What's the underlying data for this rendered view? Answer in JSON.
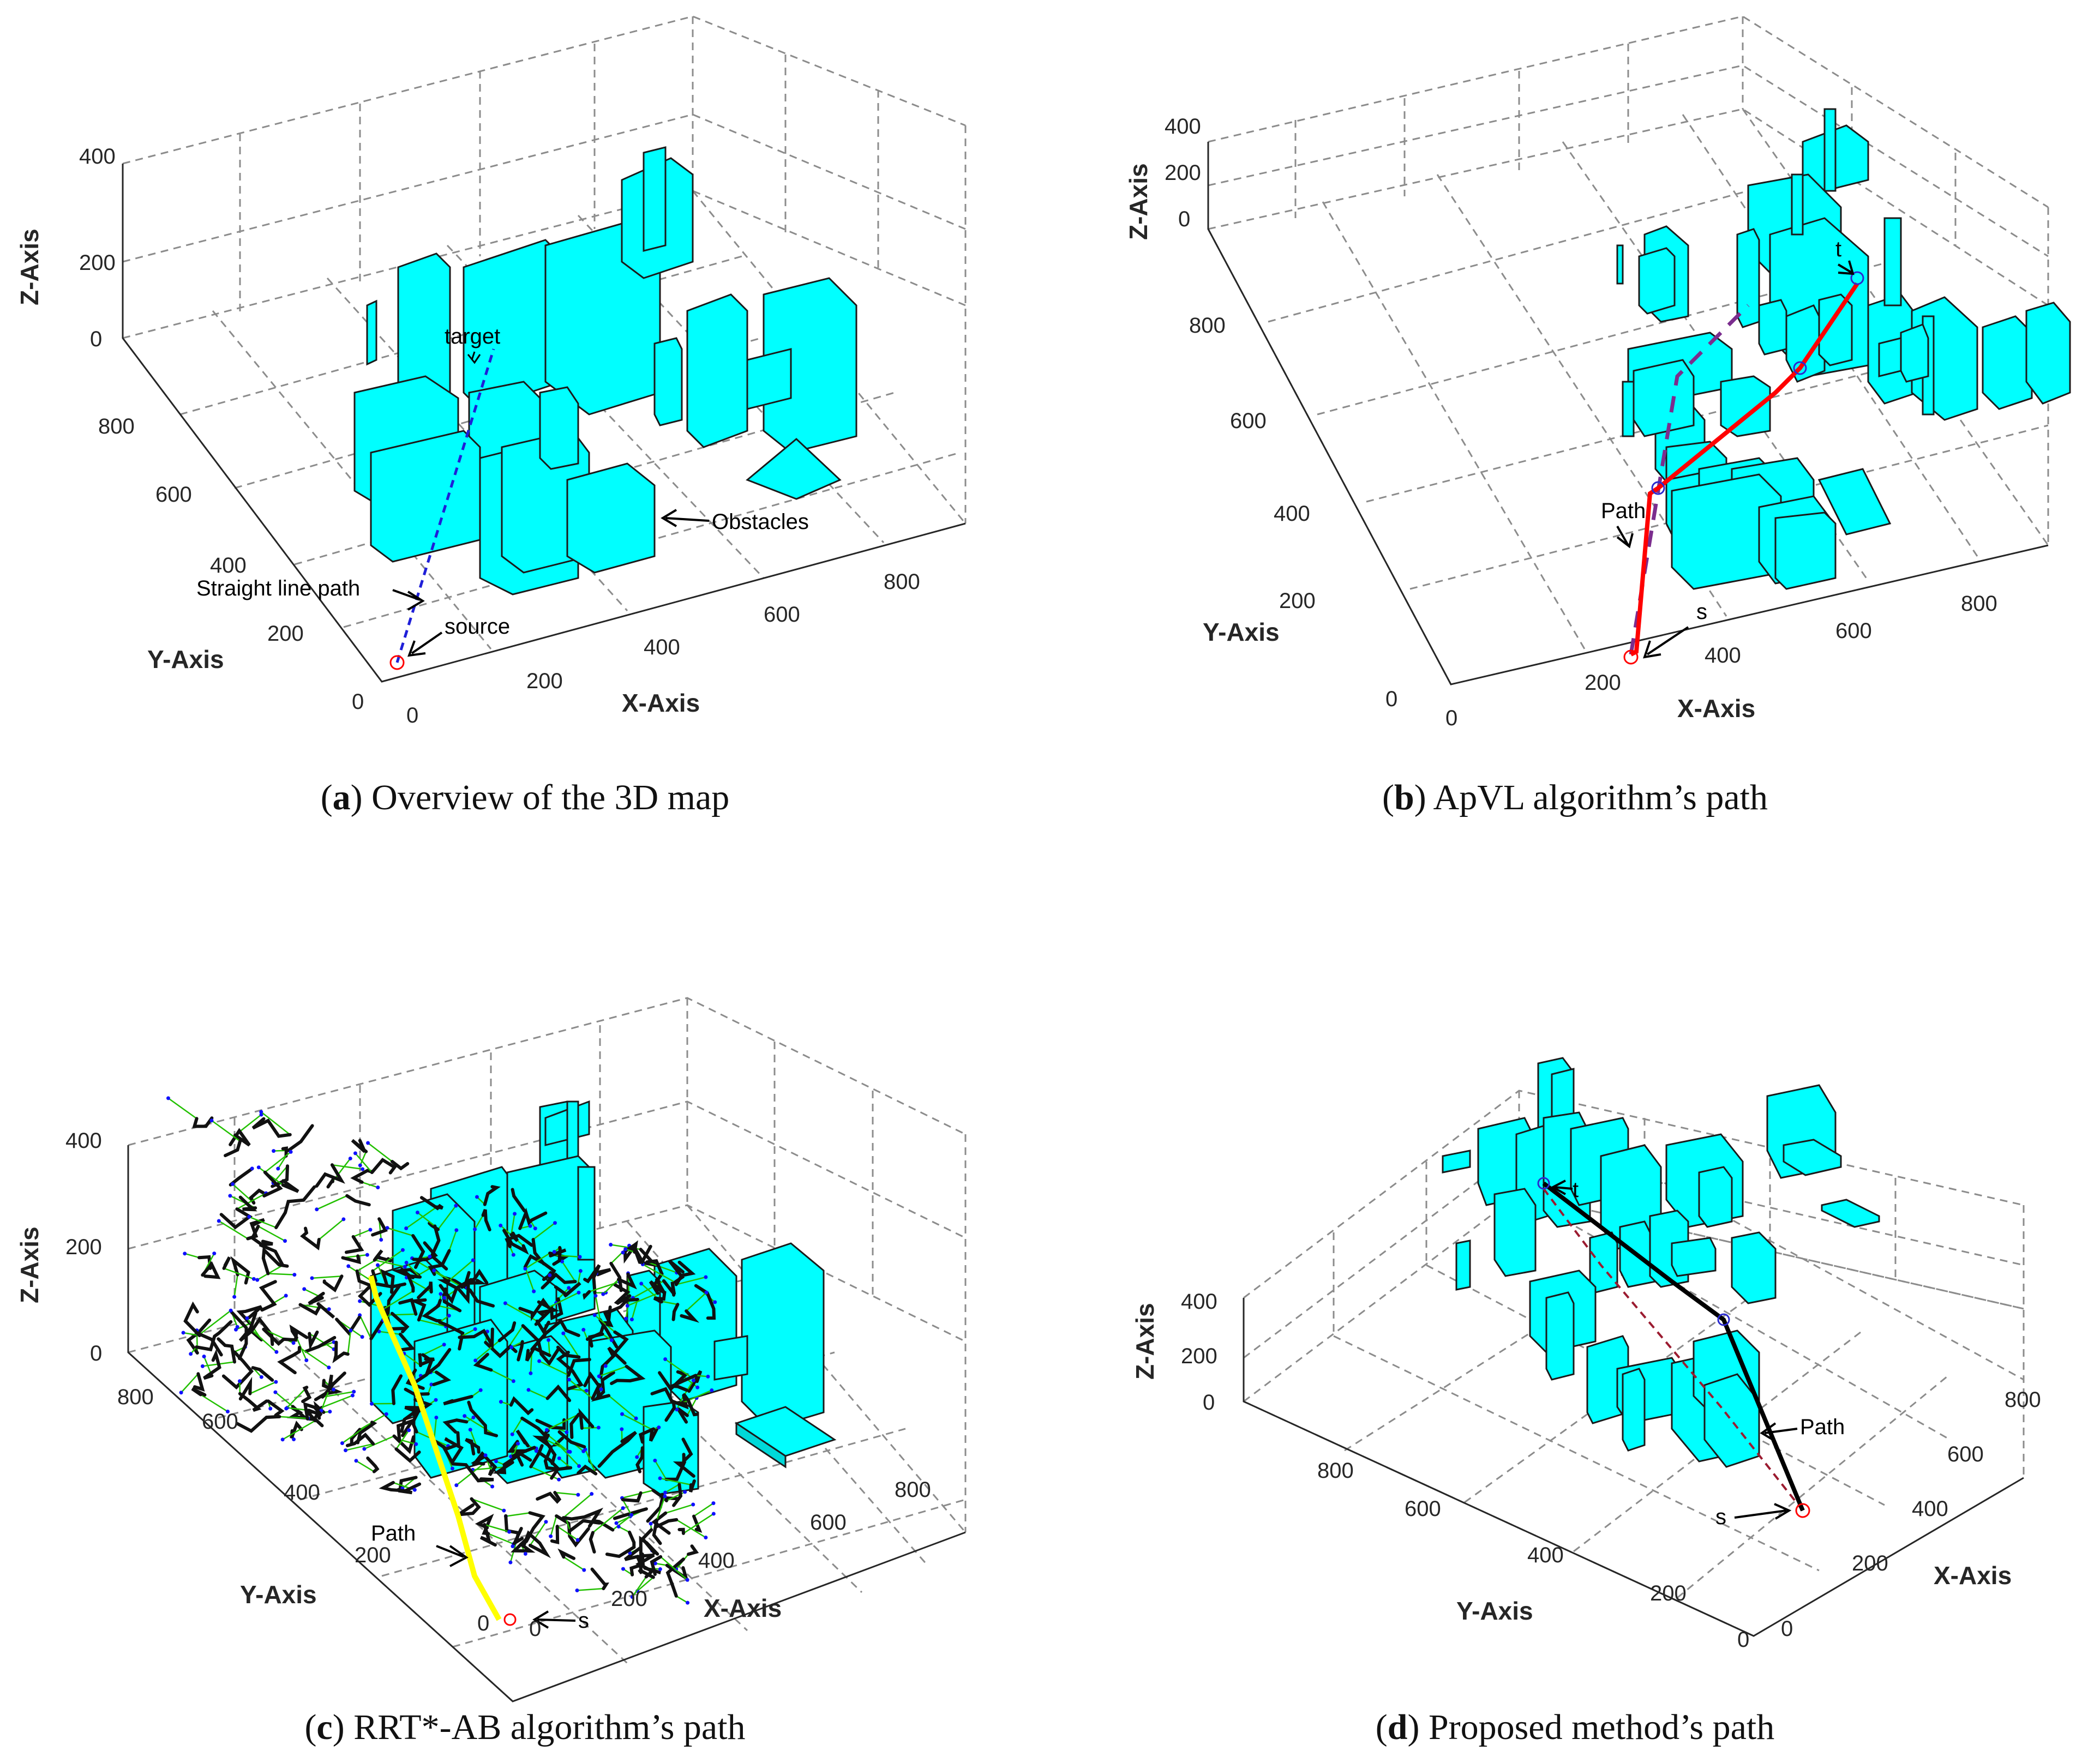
{
  "colors": {
    "obstacle": "#00ffff",
    "obstacle_edge": "#1a1a1a",
    "grid": "#8c8c8c",
    "straight_line": "#1f1fd8",
    "apvl_path": "#ff0000",
    "dashed_path": "#7b2d8e",
    "tree_branch": "#111111",
    "tree_edge": "#22c000",
    "sample_node": "#1010ff",
    "rrt_path": "#ffff00",
    "proposed_path": "#000000",
    "proposed_dashed": "#9b1b30",
    "marker": "#ff0000",
    "waypoint": "#2a2ad0"
  },
  "chart_data": [
    {
      "id": "a",
      "type": "3d-scene",
      "caption_label": "a",
      "caption_text": "Overview of the 3D map",
      "xlabel": "X-Axis",
      "ylabel": "Y-Axis",
      "zlabel": "Z-Axis",
      "xticks": [
        "0",
        "200",
        "400",
        "600",
        "800"
      ],
      "yticks": [
        "0",
        "200",
        "400",
        "600",
        "800"
      ],
      "zticks": [
        "0",
        "200",
        "400"
      ],
      "xlim": [
        0,
        900
      ],
      "ylim": [
        0,
        900
      ],
      "zlim": [
        0,
        400
      ],
      "grid": true,
      "annotations": [
        "target",
        "Obstacles",
        "Straight line path",
        "source"
      ],
      "source": [
        0,
        0,
        0
      ],
      "target": [
        350,
        850,
        0
      ]
    },
    {
      "id": "b",
      "type": "3d-scene",
      "caption_label": "b",
      "caption_text": "ApVL algorithm’s path",
      "xlabel": "X-Axis",
      "ylabel": "Y-Axis",
      "zlabel": "Z-Axis",
      "xticks": [
        "0",
        "200",
        "400",
        "600",
        "800"
      ],
      "yticks": [
        "0",
        "200",
        "400",
        "600",
        "800"
      ],
      "zticks": [
        "0",
        "200",
        "400"
      ],
      "xlim": [
        0,
        900
      ],
      "ylim": [
        0,
        900
      ],
      "zlim": [
        0,
        400
      ],
      "grid": true,
      "annotations": [
        "t",
        "Path",
        "s"
      ],
      "source": [
        0,
        0,
        0
      ],
      "target": [
        350,
        850,
        0
      ]
    },
    {
      "id": "c",
      "type": "3d-scene",
      "caption_label": "c",
      "caption_text": "RRT*-AB algorithm’s path",
      "xlabel": "X-Axis",
      "ylabel": "Y-Axis",
      "zlabel": "Z-Axis",
      "xticks": [
        "0",
        "200",
        "400",
        "600",
        "800"
      ],
      "yticks": [
        "0",
        "200",
        "400",
        "600",
        "800"
      ],
      "zticks": [
        "0",
        "200",
        "400"
      ],
      "xlim": [
        0,
        900
      ],
      "ylim": [
        0,
        900
      ],
      "zlim": [
        0,
        400
      ],
      "grid": true,
      "annotations": [
        "Path",
        "s"
      ],
      "source": [
        0,
        0,
        0
      ],
      "target": [
        350,
        850,
        0
      ]
    },
    {
      "id": "d",
      "type": "3d-scene",
      "caption_label": "d",
      "caption_text": "Proposed method’s path",
      "xlabel": "X-Axis",
      "ylabel": "Y-Axis",
      "zlabel": "Z-Axis",
      "xticks": [
        "0",
        "200",
        "400",
        "600",
        "800"
      ],
      "yticks": [
        "0",
        "200",
        "400",
        "600",
        "800"
      ],
      "zticks": [
        "0",
        "200",
        "400"
      ],
      "xlim": [
        0,
        900
      ],
      "ylim": [
        0,
        900
      ],
      "zlim": [
        0,
        400
      ],
      "grid": true,
      "annotations": [
        "t",
        "Path",
        "s"
      ],
      "source": [
        0,
        0,
        0
      ],
      "target": [
        350,
        850,
        0
      ]
    }
  ]
}
